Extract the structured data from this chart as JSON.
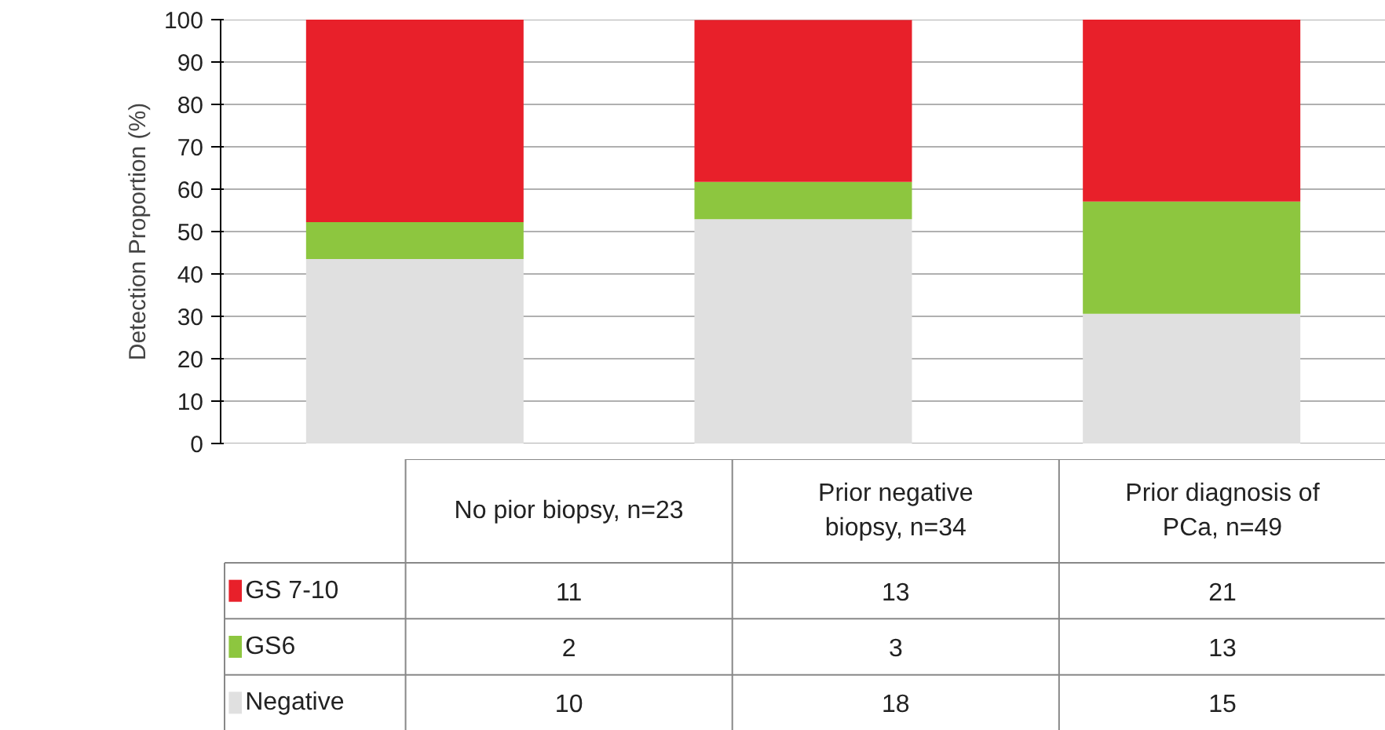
{
  "chart_data": {
    "type": "bar",
    "stacked": true,
    "ylabel": "Detection Proportion (%)",
    "categories": [
      "No pior biopsy, n=23",
      "Prior negative biopsy, n=34",
      "Prior diagnosis of PCa, n=49"
    ],
    "series": [
      {
        "name": "Negative",
        "color": "#e0e0e0",
        "values": [
          43.5,
          52.9,
          30.6
        ]
      },
      {
        "name": "GS6",
        "color": "#8dc63f",
        "values": [
          8.7,
          8.8,
          26.5
        ]
      },
      {
        "name": "GS 7-10",
        "color": "#e8202a",
        "values": [
          47.8,
          38.2,
          42.9
        ]
      }
    ],
    "annotations": [
      "11",
      "13",
      "21",
      "2",
      "3",
      "13",
      "10",
      "18",
      "15"
    ],
    "ylim": [
      0,
      100
    ],
    "yticks": [
      0,
      10,
      20,
      30,
      40,
      50,
      60,
      70,
      80,
      90,
      100
    ],
    "grid": "y",
    "legend": "bottom"
  }
}
